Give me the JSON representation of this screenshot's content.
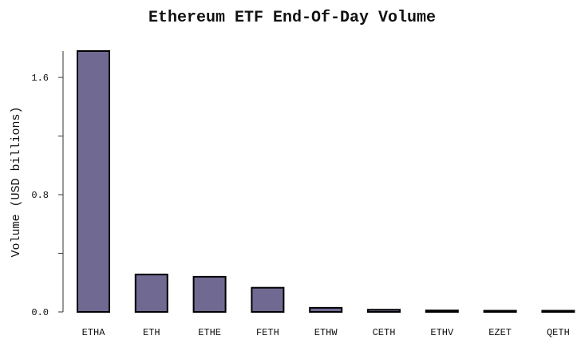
{
  "chart_data": {
    "type": "bar",
    "title": "Ethereum ETF End-Of-Day Volume",
    "xlabel": "",
    "ylabel": "Volume (USD billions)",
    "categories": [
      "ETHA",
      "ETH",
      "ETHE",
      "FETH",
      "ETHW",
      "CETH",
      "ETHV",
      "EZET",
      "QETH"
    ],
    "values": [
      1.78,
      0.255,
      0.24,
      0.165,
      0.028,
      0.015,
      0.01,
      0.006,
      0.004
    ],
    "ylim": [
      0,
      1.78
    ],
    "yticks": [
      {
        "value": 0.0,
        "label": "0.0"
      },
      {
        "value": 0.4,
        "label": ""
      },
      {
        "value": 0.8,
        "label": "0.8"
      },
      {
        "value": 1.2,
        "label": ""
      },
      {
        "value": 1.6,
        "label": "1.6"
      }
    ],
    "grid": false,
    "bar_color": "#706a93"
  }
}
